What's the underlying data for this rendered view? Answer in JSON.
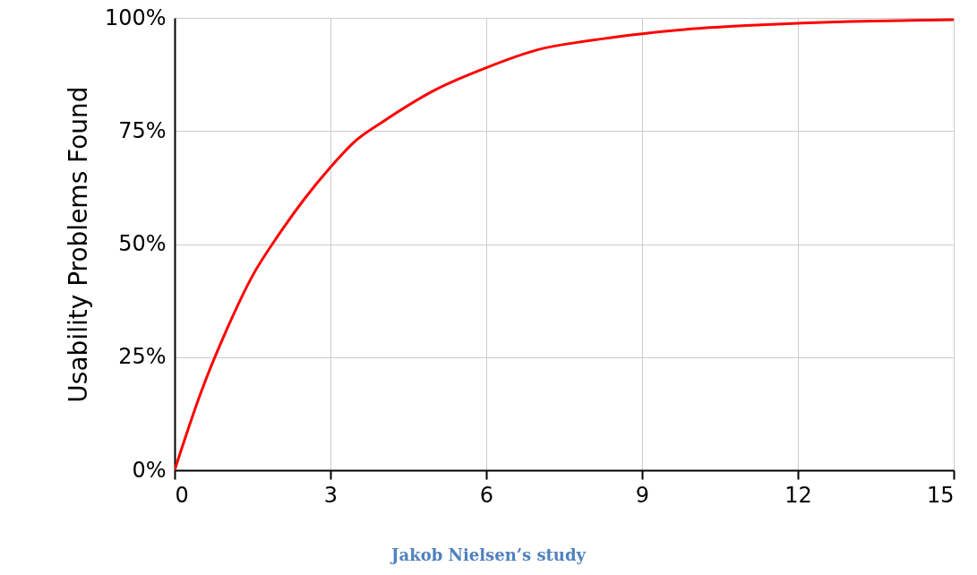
{
  "chart_data": {
    "type": "line",
    "ylabel": "Usability Problems Found",
    "annotations": [
      "Jakob Nielsen’s study"
    ],
    "x": [
      0,
      0.5,
      1,
      1.5,
      2,
      2.5,
      3,
      3.5,
      4,
      5,
      6,
      7,
      8,
      9,
      10,
      11,
      12,
      13,
      14,
      15
    ],
    "series": [
      {
        "color": "#ff0000",
        "values": [
          0,
          17,
          31,
          43,
          52,
          60,
          67,
          73,
          77,
          84,
          89,
          93,
          95,
          96.5,
          97.6,
          98.3,
          98.8,
          99.2,
          99.4,
          99.6
        ]
      }
    ],
    "xlim": [
      0,
      15
    ],
    "xticks": [
      0,
      3,
      6,
      9,
      12,
      15
    ],
    "ylim": [
      0,
      100
    ],
    "yticks": [
      {
        "value": 0,
        "label": "0%"
      },
      {
        "value": 25,
        "label": "25%"
      },
      {
        "value": 50,
        "label": "50%"
      },
      {
        "value": 75,
        "label": "75%"
      },
      {
        "value": 100,
        "label": "100%"
      }
    ],
    "grid": true,
    "marker": "none",
    "line_style": "solid"
  }
}
